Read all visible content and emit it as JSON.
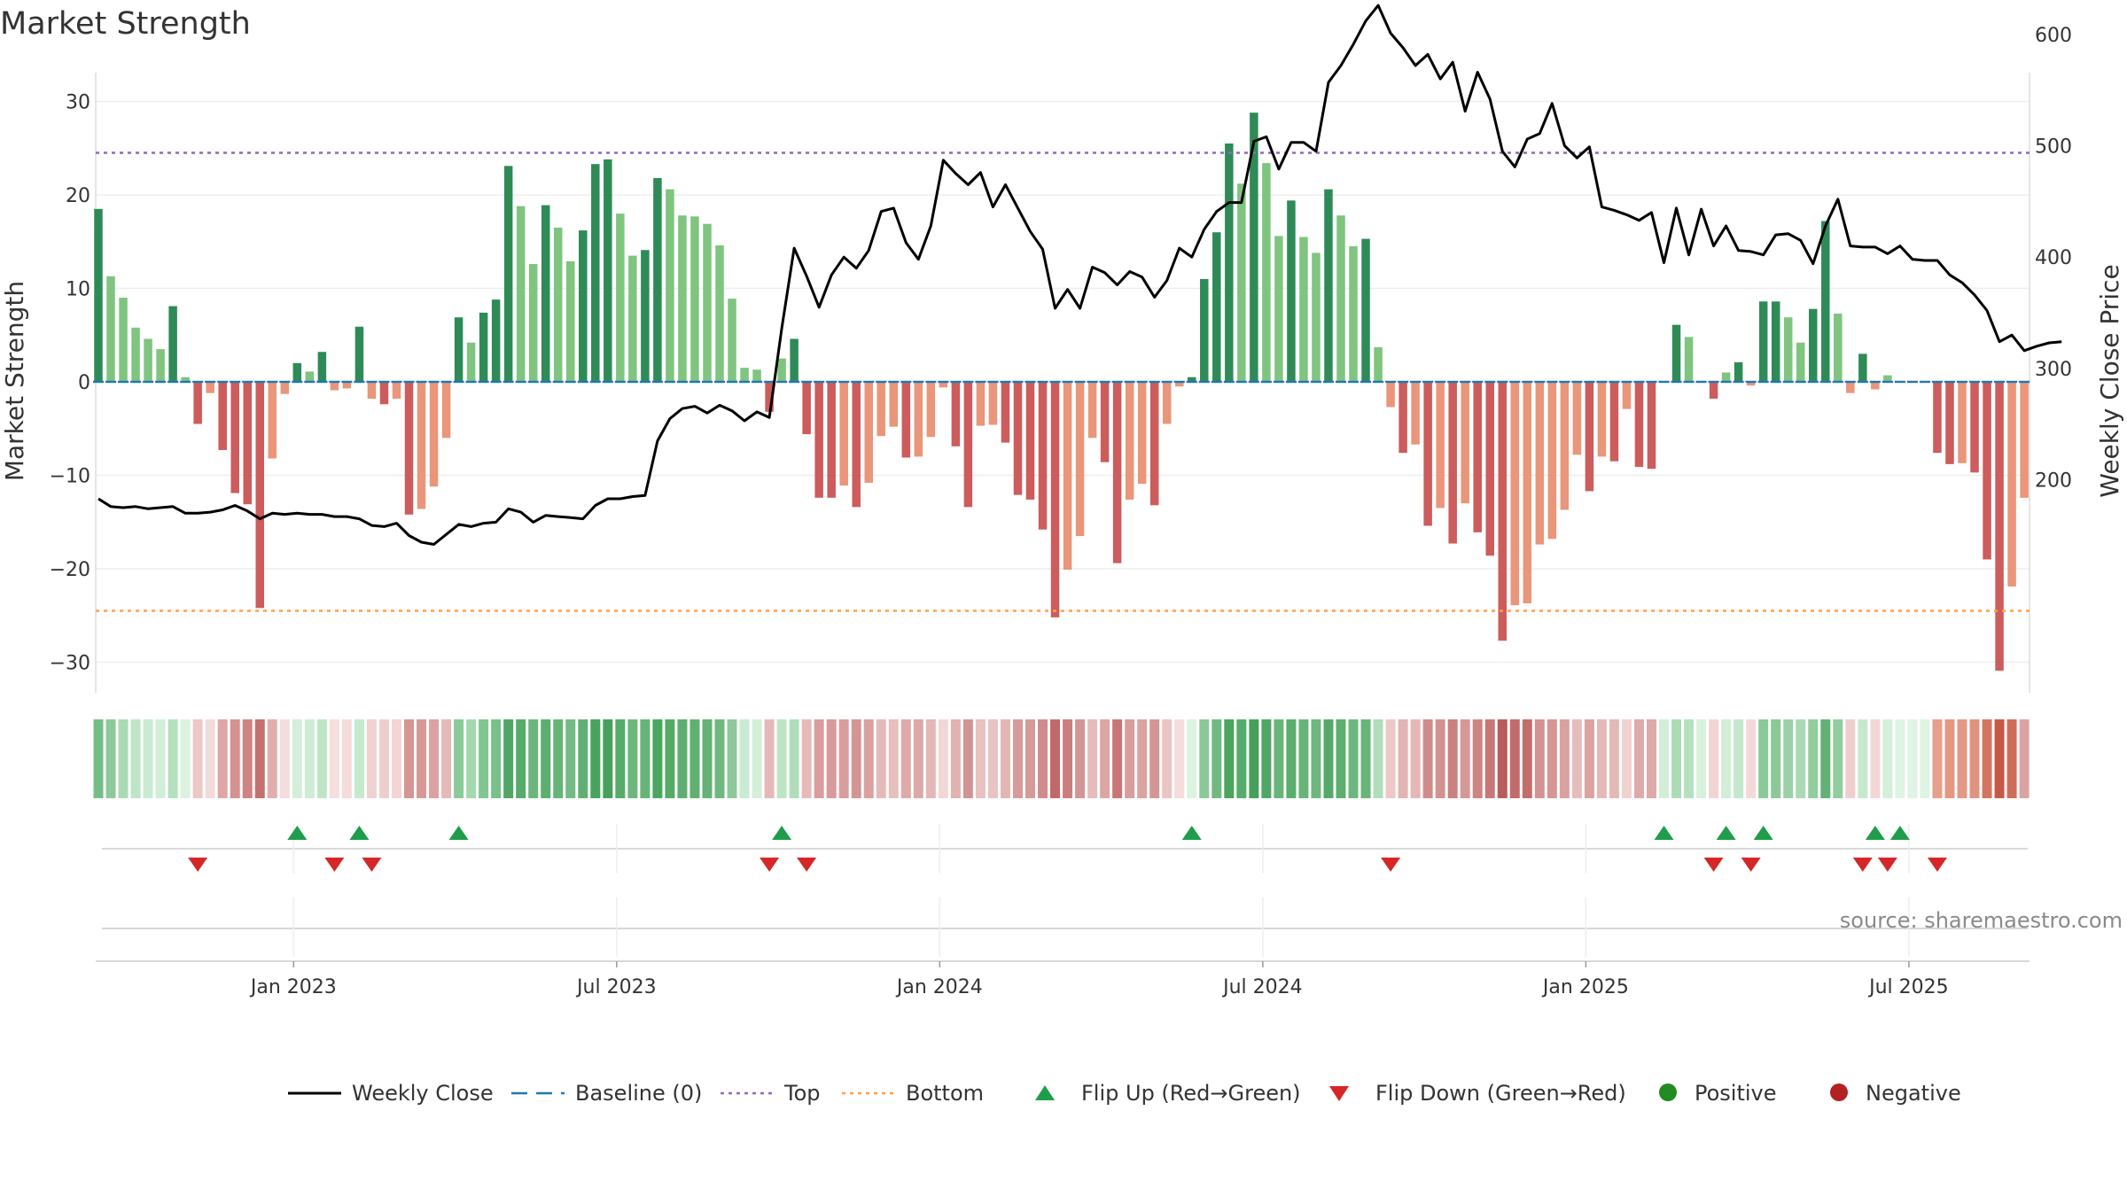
{
  "chart_data": {
    "type": "bar",
    "title": "Market Strength",
    "ylabel": "Market Strength",
    "y2label": "Weekly Close Price",
    "ylim": [
      -33,
      33
    ],
    "y2lim": [
      118,
      647
    ],
    "y_ticks": [
      30,
      20,
      10,
      0,
      -10,
      -20,
      -30
    ],
    "y_tick_labels": [
      "30",
      "20",
      "10",
      "0",
      "−10",
      "−20",
      "−30"
    ],
    "y2_ticks": [
      600,
      500,
      400,
      300,
      200
    ],
    "y2_tick_labels": [
      "600",
      "500",
      "400",
      "300",
      "200"
    ],
    "x_tick_labels": [
      "Jan 2023",
      "Jul 2023",
      "Jan 2024",
      "Jul 2024",
      "Jan 2025",
      "Jul 2025"
    ],
    "x_tick_weeks": [
      15,
      41,
      67,
      93,
      119,
      145
    ],
    "top_threshold": 24.5,
    "bottom_threshold": -24.5,
    "weeks": 156,
    "strength": [
      18.5,
      11.3,
      9,
      5.8,
      4.6,
      3.5,
      8.1,
      0.5,
      -4.5,
      -1.2,
      -7.3,
      -11.9,
      -13.1,
      -24.2,
      -8.2,
      -1.3,
      2,
      1.1,
      3.2,
      -0.9,
      -0.7,
      5.9,
      -1.8,
      -2.4,
      -1.8,
      -14.2,
      -13.6,
      -11.2,
      -6,
      6.9,
      4.2,
      7.4,
      8.8,
      23.1,
      18.8,
      12.6,
      18.9,
      16.5,
      12.9,
      16.2,
      23.3,
      23.8,
      18,
      13.5,
      14.1,
      21.8,
      20.6,
      17.8,
      17.7,
      16.9,
      14.6,
      8.9,
      1.5,
      1.3,
      -3.2,
      2.5,
      4.6,
      -5.6,
      -12.4,
      -12.4,
      -11.1,
      -13.4,
      -10.8,
      -5.8,
      -4.8,
      -8.1,
      -8,
      -5.9,
      -0.6,
      -6.9,
      -13.4,
      -4.7,
      -4.6,
      -6.5,
      -12.1,
      -12.6,
      -15.8,
      -25.2,
      -20.1,
      -16.5,
      -6,
      -8.6,
      -19.4,
      -12.6,
      -10.9,
      -13.2,
      -4.5,
      -0.5,
      0.5,
      11,
      16,
      25.5,
      21.2,
      28.8,
      23.4,
      15.6,
      19.4,
      15.5,
      13.8,
      20.6,
      17.8,
      14.5,
      15.3,
      3.7,
      -2.7,
      -7.6,
      -6.7,
      -15.4,
      -13.5,
      -17.3,
      -13,
      -16.1,
      -18.6,
      -27.7,
      -23.9,
      -23.7,
      -17.4,
      -16.8,
      -13.7,
      -7.8,
      -11.7,
      -8,
      -8.5,
      -2.9,
      -9.1,
      -9.3,
      0,
      6.1,
      4.8,
      0,
      -1.8,
      1,
      2.1,
      -0.4,
      8.6,
      8.6,
      6.9,
      4.2,
      7.8,
      17.2,
      7.3,
      -1.2,
      3,
      -0.8,
      0.7,
      0,
      0,
      0,
      -7.6,
      -8.8,
      -8.7,
      -9.7,
      -19,
      -30.9,
      -21.9,
      -12.4
    ],
    "weekly_close": [
      183,
      176,
      175,
      176,
      174,
      175,
      176,
      170,
      170,
      171,
      173,
      177,
      172,
      165,
      170,
      169,
      170,
      169,
      169,
      167,
      167,
      165,
      159,
      158,
      161,
      150,
      144,
      142,
      151,
      160,
      158,
      161,
      162,
      174,
      171,
      162,
      168,
      167,
      166,
      165,
      177,
      183,
      183,
      185,
      186,
      235,
      255,
      264,
      266,
      260,
      267,
      262,
      253,
      261,
      256,
      336,
      408,
      383,
      355,
      384,
      400,
      390,
      406,
      441,
      444,
      413,
      398,
      428,
      487,
      475,
      465,
      476,
      445,
      465,
      444,
      423,
      407,
      354,
      371,
      354,
      391,
      386,
      375,
      387,
      382,
      364,
      379,
      408,
      400,
      425,
      441,
      449,
      449,
      504,
      508,
      479,
      503,
      503,
      495,
      557,
      572,
      591,
      612,
      626,
      601,
      588,
      572,
      582,
      560,
      575,
      531,
      566,
      542,
      495,
      481,
      506,
      511,
      538,
      500,
      489,
      499,
      445,
      442,
      438,
      433,
      440,
      395,
      444,
      402,
      443,
      410,
      428,
      406,
      405,
      402,
      420,
      421,
      415,
      394,
      428,
      452,
      410,
      409,
      409,
      403,
      410,
      398,
      397,
      397,
      384,
      377,
      366,
      352,
      324,
      330,
      316,
      320,
      323,
      324
    ],
    "heat_rgb": [
      [
        117,
        189,
        134
      ],
      [
        140,
        202,
        154
      ],
      [
        170,
        218,
        180
      ],
      [
        191,
        229,
        199
      ],
      [
        201,
        235,
        209
      ],
      [
        208,
        239,
        215
      ],
      [
        180,
        224,
        189
      ],
      [
        220,
        242,
        225
      ],
      [
        236,
        200,
        198
      ],
      [
        243,
        219,
        218
      ],
      [
        222,
        167,
        166
      ],
      [
        212,
        146,
        145
      ],
      [
        205,
        132,
        131
      ],
      [
        196,
        113,
        112
      ],
      [
        226,
        174,
        173
      ],
      [
        244,
        222,
        221
      ],
      [
        212,
        239,
        217
      ],
      [
        205,
        236,
        211
      ],
      [
        190,
        230,
        198
      ],
      [
        246,
        223,
        222
      ],
      [
        244,
        220,
        219
      ],
      [
        197,
        233,
        205
      ],
      [
        240,
        210,
        209
      ],
      [
        238,
        206,
        205
      ],
      [
        242,
        213,
        212
      ],
      [
        212,
        149,
        148
      ],
      [
        214,
        153,
        152
      ],
      [
        219,
        162,
        161
      ],
      [
        227,
        186,
        185
      ],
      [
        138,
        203,
        153
      ],
      [
        164,
        216,
        175
      ],
      [
        128,
        198,
        145
      ],
      [
        120,
        193,
        137
      ],
      [
        81,
        166,
        101
      ],
      [
        86,
        172,
        107
      ],
      [
        107,
        182,
        124
      ],
      [
        92,
        175,
        112
      ],
      [
        103,
        179,
        120
      ],
      [
        114,
        187,
        131
      ],
      [
        97,
        176,
        115
      ],
      [
        73,
        163,
        94
      ],
      [
        71,
        161,
        92
      ],
      [
        86,
        172,
        106
      ],
      [
        108,
        184,
        124
      ],
      [
        103,
        180,
        119
      ],
      [
        76,
        166,
        97
      ],
      [
        85,
        170,
        104
      ],
      [
        94,
        174,
        113
      ],
      [
        96,
        176,
        114
      ],
      [
        101,
        177,
        118
      ],
      [
        111,
        184,
        127
      ],
      [
        141,
        201,
        154
      ],
      [
        201,
        235,
        209
      ],
      [
        210,
        240,
        216
      ],
      [
        230,
        185,
        184
      ],
      [
        189,
        229,
        197
      ],
      [
        176,
        222,
        185
      ],
      [
        230,
        186,
        185
      ],
      [
        216,
        157,
        156
      ],
      [
        214,
        155,
        154
      ],
      [
        216,
        158,
        157
      ],
      [
        211,
        150,
        149
      ],
      [
        218,
        161,
        160
      ],
      [
        228,
        186,
        185
      ],
      [
        230,
        191,
        190
      ],
      [
        222,
        171,
        170
      ],
      [
        220,
        169,
        168
      ],
      [
        227,
        184,
        183
      ],
      [
        242,
        215,
        214
      ],
      [
        225,
        178,
        177
      ],
      [
        210,
        148,
        147
      ],
      [
        232,
        193,
        192
      ],
      [
        233,
        195,
        194
      ],
      [
        226,
        182,
        181
      ],
      [
        214,
        155,
        154
      ],
      [
        214,
        154,
        153
      ],
      [
        208,
        140,
        139
      ],
      [
        192,
        105,
        104
      ],
      [
        202,
        127,
        126
      ],
      [
        211,
        149,
        148
      ],
      [
        230,
        188,
        187
      ],
      [
        220,
        166,
        165
      ],
      [
        201,
        119,
        118
      ],
      [
        216,
        158,
        157
      ],
      [
        219,
        164,
        163
      ],
      [
        212,
        150,
        149
      ],
      [
        234,
        197,
        196
      ],
      [
        244,
        221,
        220
      ],
      [
        220,
        243,
        224
      ],
      [
        138,
        200,
        152
      ],
      [
        112,
        186,
        129
      ],
      [
        76,
        164,
        95
      ],
      [
        86,
        172,
        106
      ],
      [
        70,
        160,
        90
      ],
      [
        80,
        167,
        100
      ],
      [
        104,
        181,
        121
      ],
      [
        91,
        174,
        110
      ],
      [
        103,
        180,
        120
      ],
      [
        110,
        183,
        126
      ],
      [
        85,
        170,
        105
      ],
      [
        94,
        174,
        113
      ],
      [
        108,
        183,
        125
      ],
      [
        104,
        181,
        121
      ],
      [
        176,
        222,
        185
      ],
      [
        236,
        201,
        200
      ],
      [
        226,
        180,
        179
      ],
      [
        228,
        184,
        183
      ],
      [
        208,
        140,
        139
      ],
      [
        210,
        146,
        145
      ],
      [
        203,
        129,
        128
      ],
      [
        213,
        152,
        151
      ],
      [
        205,
        133,
        132
      ],
      [
        198,
        119,
        118
      ],
      [
        185,
        92,
        91
      ],
      [
        193,
        108,
        107
      ],
      [
        194,
        110,
        109
      ],
      [
        211,
        147,
        146
      ],
      [
        213,
        150,
        149
      ],
      [
        218,
        161,
        160
      ],
      [
        230,
        189,
        188
      ],
      [
        219,
        163,
        162
      ],
      [
        228,
        186,
        185
      ],
      [
        227,
        184,
        183
      ],
      [
        240,
        210,
        209
      ],
      [
        222,
        171,
        170
      ],
      [
        222,
        170,
        169
      ],
      [
        210,
        238,
        216
      ],
      [
        172,
        220,
        182
      ],
      [
        181,
        225,
        190
      ],
      [
        215,
        241,
        221
      ],
      [
        241,
        213,
        212
      ],
      [
        210,
        238,
        216
      ],
      [
        195,
        232,
        203
      ],
      [
        243,
        218,
        217
      ],
      [
        139,
        201,
        153
      ],
      [
        139,
        201,
        153
      ],
      [
        156,
        209,
        168
      ],
      [
        170,
        218,
        180
      ],
      [
        146,
        205,
        159
      ],
      [
        99,
        177,
        117
      ],
      [
        145,
        205,
        158
      ],
      [
        238,
        207,
        206
      ],
      [
        198,
        233,
        205
      ],
      [
        242,
        215,
        214
      ],
      [
        212,
        239,
        218
      ],
      [
        223,
        244,
        228
      ],
      [
        223,
        244,
        228
      ],
      [
        223,
        244,
        228
      ],
      [
        230,
        160,
        140
      ],
      [
        227,
        152,
        132
      ],
      [
        227,
        153,
        133
      ],
      [
        224,
        147,
        127
      ],
      [
        210,
        118,
        98
      ],
      [
        197,
        89,
        70
      ],
      [
        206,
        110,
        90
      ],
      [
        218,
        164,
        163
      ]
    ],
    "flip_up_weeks": [
      16,
      21,
      29,
      55,
      88,
      126,
      131,
      134,
      143,
      145
    ],
    "flip_down_weeks": [
      8,
      19,
      22,
      54,
      57,
      104,
      130,
      133,
      142,
      144,
      148
    ],
    "source": "source: sharemaestro.com",
    "colors": {
      "dark_green": "#2e8b57",
      "light_green": "#7fc47f",
      "dark_red": "#cd5c5c",
      "light_red": "#e9967a",
      "baseline": "#1f77b4",
      "top": "#9467bd",
      "bottom": "#ff9f4a",
      "close_line": "#000000",
      "flip_up": "#1e9e4a",
      "flip_down": "#d62728",
      "positive": "#228b22",
      "negative": "#b22222"
    },
    "legend": [
      {
        "label": "Weekly Close",
        "kind": "line"
      },
      {
        "label": "Baseline (0)",
        "kind": "dash"
      },
      {
        "label": "Top",
        "kind": "dot-top"
      },
      {
        "label": "Bottom",
        "kind": "dot-bottom"
      },
      {
        "label": "Flip Up (Red→Green)",
        "kind": "tri-up"
      },
      {
        "label": "Flip Down (Green→Red)",
        "kind": "tri-down"
      },
      {
        "label": "Positive",
        "kind": "circ-pos"
      },
      {
        "label": "Negative",
        "kind": "circ-neg"
      }
    ]
  }
}
